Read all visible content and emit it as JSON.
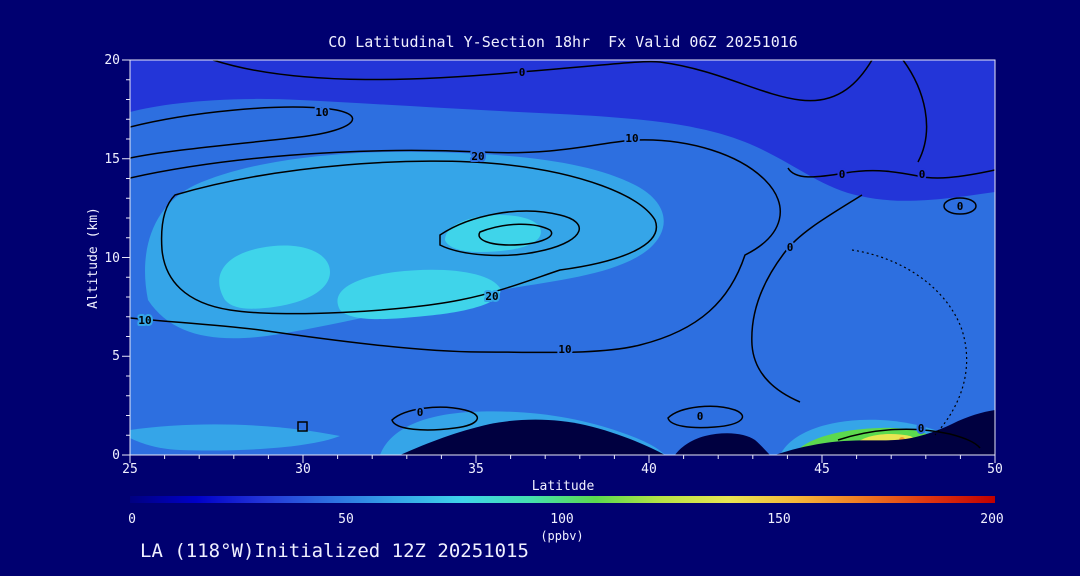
{
  "title": "CO Latitudinal Y-Section 18hr  Fx Valid 06Z 20251016",
  "footer": "LA (118°W)Initialized 12Z 20251015",
  "axes": {
    "x_label": "Latitude",
    "y_label": "Altitude (km)",
    "x_ticks": [
      "25",
      "30",
      "35",
      "40",
      "45",
      "50"
    ],
    "y_ticks": [
      "0",
      "5",
      "10",
      "15",
      "20"
    ],
    "x_min": 25,
    "x_max": 50,
    "x_major_step": 5,
    "x_minor_step": 1,
    "y_min": 0,
    "y_max": 20,
    "y_major_step": 5,
    "y_minor_step": 1
  },
  "colorbar": {
    "tick_labels": [
      "0",
      "50",
      "100",
      "150",
      "200"
    ],
    "units_label": "(ppbv)",
    "min": 0,
    "max": 200,
    "colors": [
      "#000080",
      "#0000c8",
      "#2335d8",
      "#2d6fe0",
      "#35a5e8",
      "#3fd4ea",
      "#45e0b0",
      "#5cd94e",
      "#b8e345",
      "#e8e552",
      "#f5b83a",
      "#ef7a22",
      "#e03510",
      "#c00000"
    ]
  },
  "contour_labels": [
    {
      "text": "0"
    },
    {
      "text": "10"
    },
    {
      "text": "10"
    },
    {
      "text": "20"
    },
    {
      "text": "0"
    },
    {
      "text": "0"
    },
    {
      "text": "0"
    },
    {
      "text": "0"
    },
    {
      "text": "20"
    },
    {
      "text": "10"
    },
    {
      "text": "10"
    },
    {
      "text": "0"
    },
    {
      "text": "0"
    },
    {
      "text": "0"
    }
  ],
  "colors": {
    "background": "#000070",
    "frame": "#e8e8f8",
    "text": "#f0f0ff",
    "contour_line": "#000000",
    "terrain_mask": "#000040",
    "fill_0_10": "#2335d8",
    "fill_10_20": "#2d6fe0",
    "fill_20_30": "#35a5e8",
    "fill_30_40": "#3fd4ea",
    "fill_green": "#5cd94e",
    "fill_yellow": "#e8e552"
  },
  "chart_data": {
    "type": "heatmap",
    "title": "CO Latitudinal Y-Section 18hr Fx Valid 06Z 20251016",
    "subtitle": "LA (118°W) Initialized 12Z 20251015",
    "xlabel": "Latitude",
    "ylabel": "Altitude (km)",
    "xlim": [
      25,
      50
    ],
    "ylim": [
      0,
      20
    ],
    "value_units": "ppbv",
    "value_range": [
      0,
      200
    ],
    "colorbar_ticks": [
      0,
      50,
      100,
      150,
      200
    ],
    "contour_interval": 10,
    "labeled_contour_levels": [
      0,
      10,
      20
    ],
    "grid_x_latitude": [
      25,
      30,
      35,
      40,
      45,
      50
    ],
    "grid_y_altitude_km": [
      0,
      5,
      10,
      15,
      20
    ],
    "values_ppbv_rows_by_altitude": [
      [
        30,
        28,
        38,
        22,
        90,
        30
      ],
      [
        25,
        30,
        28,
        18,
        12,
        15
      ],
      [
        22,
        30,
        32,
        22,
        12,
        12
      ],
      [
        15,
        20,
        22,
        12,
        5,
        5
      ],
      [
        5,
        8,
        10,
        8,
        2,
        2
      ]
    ],
    "annotations": [
      "Closed 20 ppbv contour region centered near 33-38N between 5 and 13 km",
      "Near-zero CO (dark blue) above ~16 km and over 42-50N upper levels",
      "Surface CO maximum (~100 ppbv, green/yellow) near 45.5-47.5N just above terrain",
      "Smaller surface enhancement near 33.5-34.5N",
      "Dark terrain mask along bottom between ~33N and 50N",
      "Dotted (negative/below-interval) contour near 46-49N mid-low levels"
    ],
    "legend_position": "bottom colorbar",
    "grid": false
  }
}
